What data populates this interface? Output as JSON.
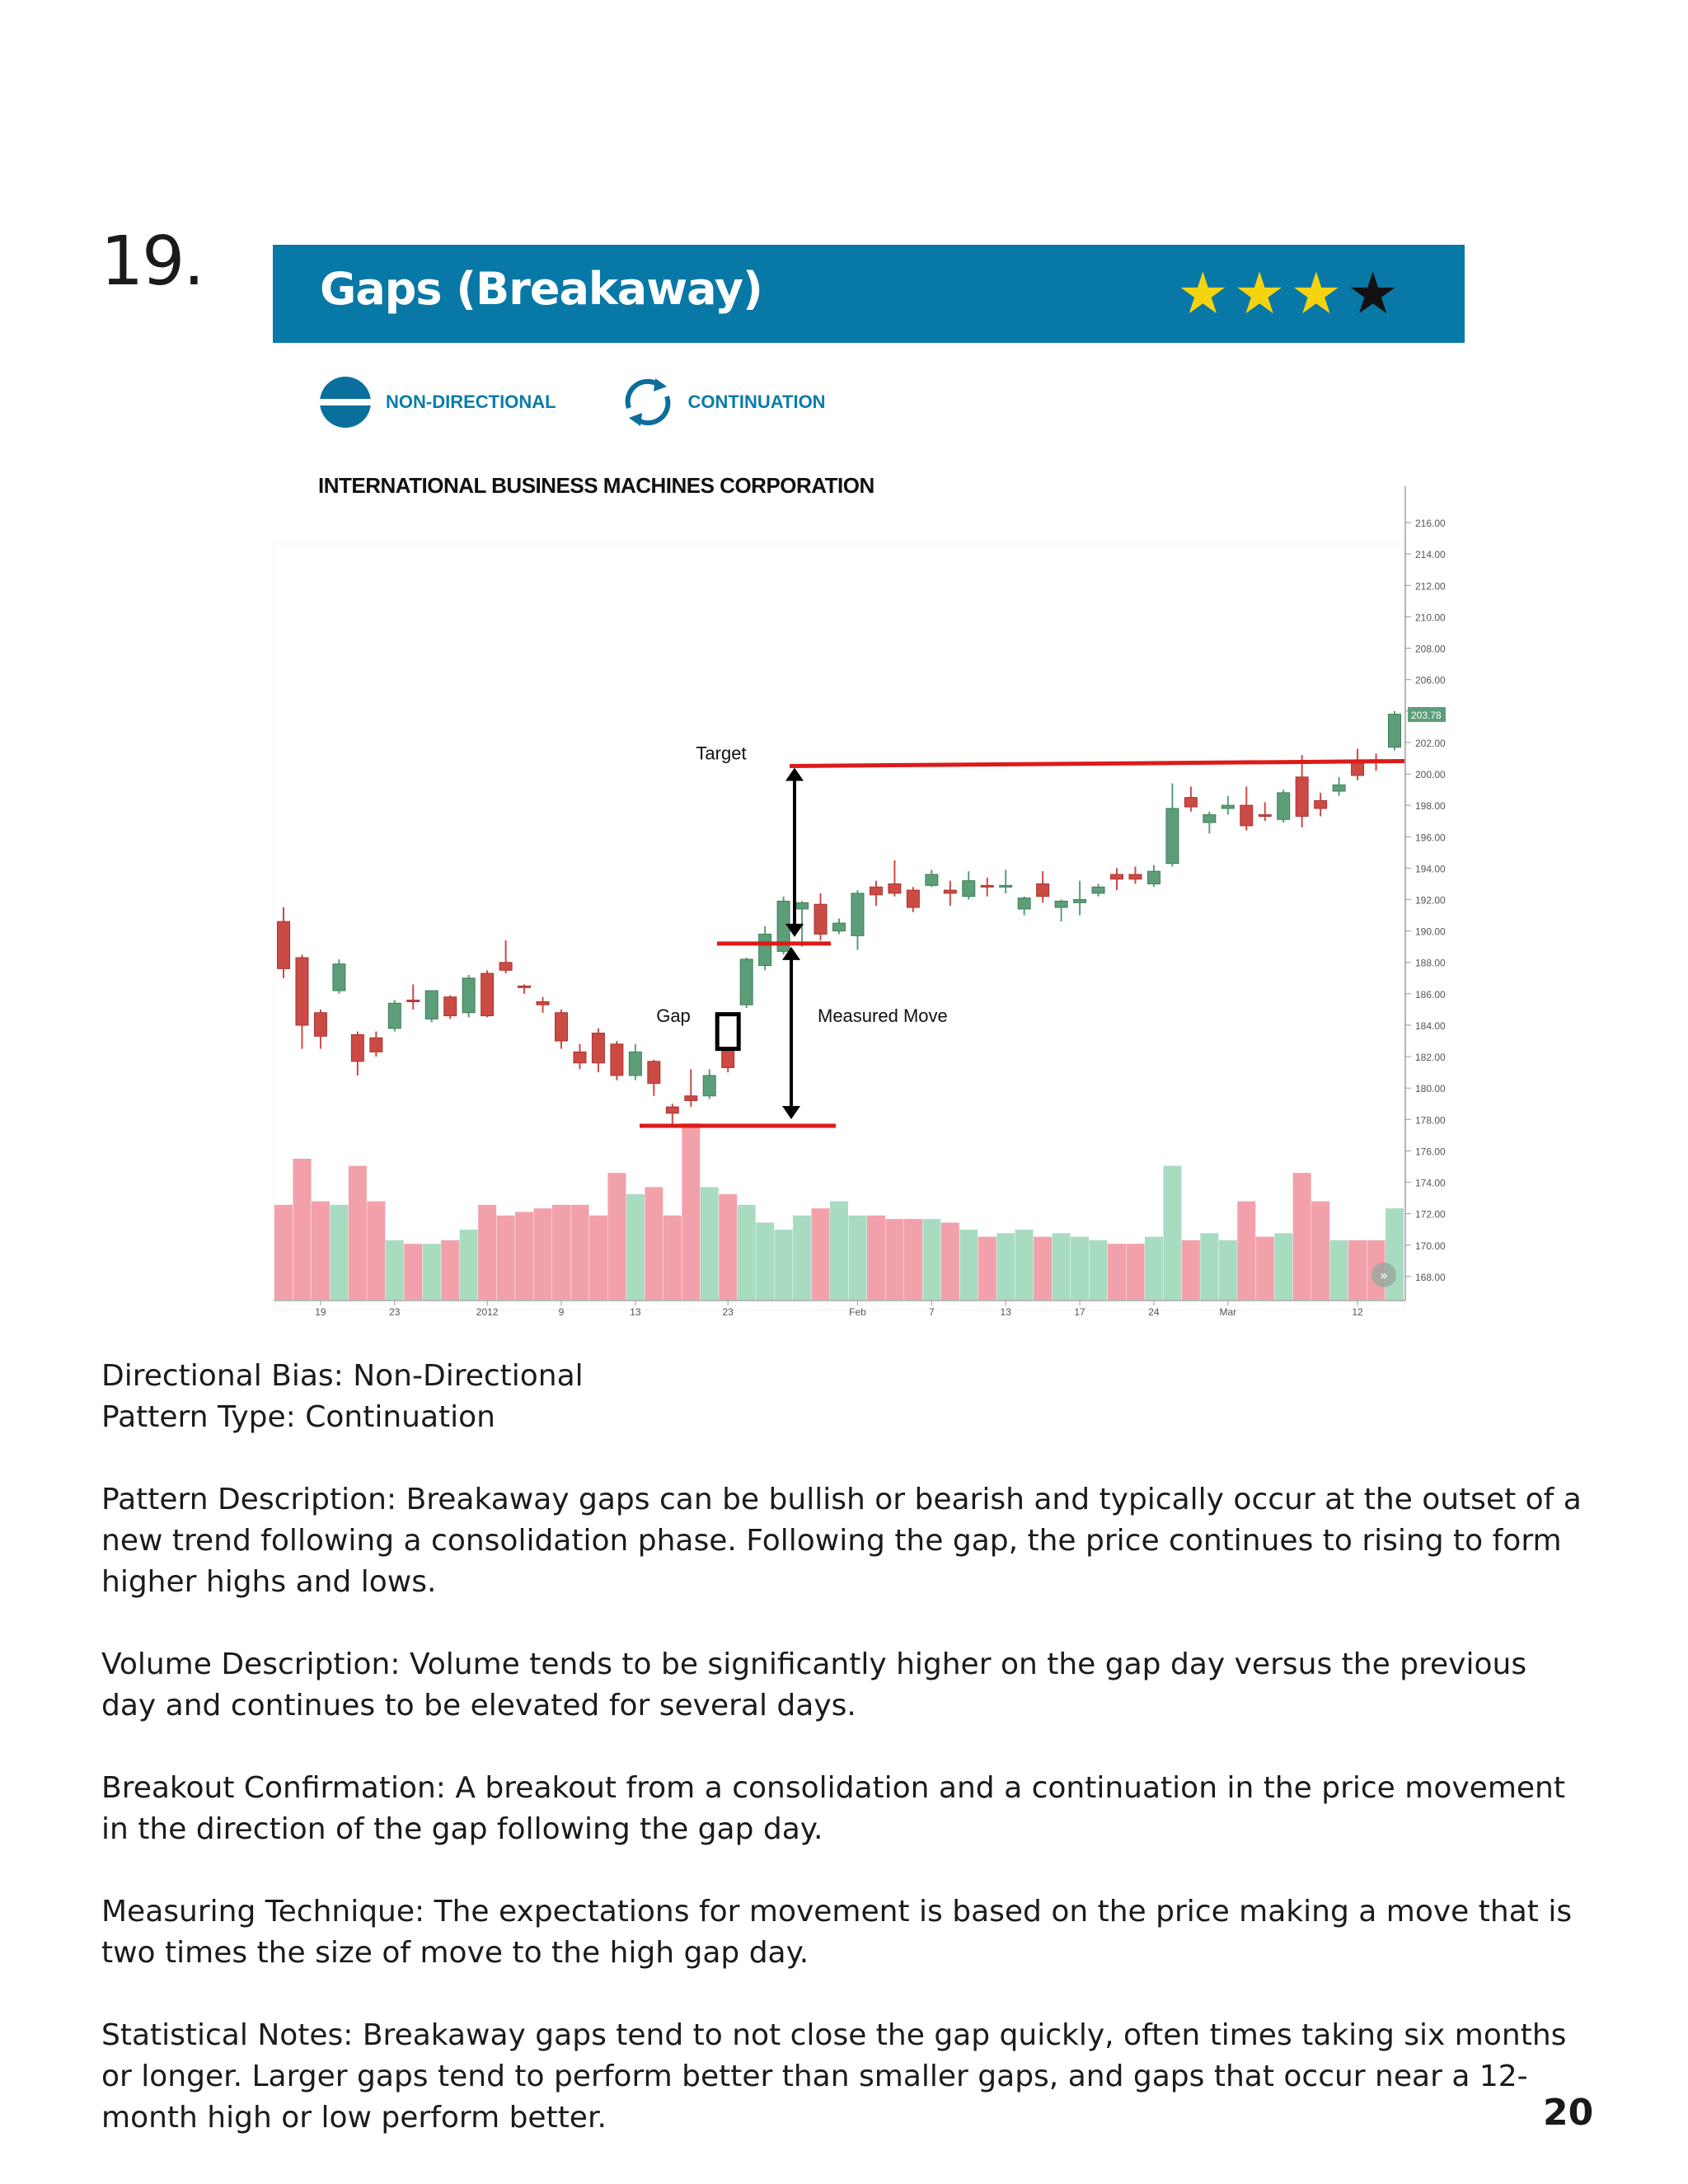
{
  "page": {
    "pattern_number": "19.",
    "page_number": "20"
  },
  "banner": {
    "title": "Gaps (Breakaway)",
    "rating": 3,
    "rating_max": 4,
    "background_color": "#0878a6"
  },
  "tags": [
    {
      "icon": "non-directional-icon",
      "label": "NON-DIRECTIONAL"
    },
    {
      "icon": "continuation-icon",
      "label": "CONTINUATION"
    }
  ],
  "chart_title": "INTERNATIONAL BUSINESS MACHINES CORPORATION",
  "chart_data": {
    "type": "candlestick",
    "title": "INTERNATIONAL BUSINESS MACHINES CORPORATION",
    "ylim": [
      167,
      217
    ],
    "y_ticks": [
      "216.00",
      "214.00",
      "212.00",
      "210.00",
      "208.00",
      "206.00",
      "204.00",
      "202.00",
      "200.00",
      "198.00",
      "196.00",
      "194.00",
      "192.00",
      "190.00",
      "188.00",
      "186.00",
      "184.00",
      "182.00",
      "180.00",
      "178.00",
      "176.00",
      "174.00",
      "172.00",
      "170.00",
      "168.00"
    ],
    "last_price_label": "203.78",
    "x_tick_labels": [
      {
        "index": 2,
        "label": "19"
      },
      {
        "index": 6,
        "label": "23"
      },
      {
        "index": 11,
        "label": "2012"
      },
      {
        "index": 15,
        "label": "9"
      },
      {
        "index": 19,
        "label": "13"
      },
      {
        "index": 24,
        "label": "23"
      },
      {
        "index": 31,
        "label": "Feb"
      },
      {
        "index": 35,
        "label": "7"
      },
      {
        "index": 39,
        "label": "13"
      },
      {
        "index": 43,
        "label": "17"
      },
      {
        "index": 47,
        "label": "24"
      },
      {
        "index": 51,
        "label": "Mar"
      },
      {
        "index": 58,
        "label": "12"
      }
    ],
    "candles": [
      {
        "o": 190.6,
        "h": 191.5,
        "c": 187.6,
        "l": 187.0
      },
      {
        "o": 188.3,
        "h": 188.5,
        "c": 184.0,
        "l": 182.5
      },
      {
        "o": 184.8,
        "h": 185.0,
        "c": 183.3,
        "l": 182.5
      },
      {
        "o": 186.2,
        "h": 188.2,
        "c": 187.9,
        "l": 186.0
      },
      {
        "o": 183.4,
        "h": 183.6,
        "c": 181.7,
        "l": 180.8
      },
      {
        "o": 183.2,
        "h": 183.6,
        "c": 182.3,
        "l": 182.0
      },
      {
        "o": 183.8,
        "h": 185.6,
        "c": 185.4,
        "l": 183.6
      },
      {
        "o": 185.6,
        "h": 186.6,
        "c": 185.5,
        "l": 185.0
      },
      {
        "o": 184.4,
        "h": 186.2,
        "c": 186.2,
        "l": 184.2
      },
      {
        "o": 185.8,
        "h": 185.9,
        "c": 184.6,
        "l": 184.4
      },
      {
        "o": 184.8,
        "h": 187.2,
        "c": 187.0,
        "l": 184.5
      },
      {
        "o": 187.3,
        "h": 187.5,
        "c": 184.6,
        "l": 184.5
      },
      {
        "o": 188.0,
        "h": 189.4,
        "c": 187.5,
        "l": 187.3
      },
      {
        "o": 186.5,
        "h": 186.6,
        "c": 186.4,
        "l": 186.0
      },
      {
        "o": 185.5,
        "h": 185.8,
        "c": 185.3,
        "l": 184.8
      },
      {
        "o": 184.8,
        "h": 185.0,
        "c": 183.0,
        "l": 182.5
      },
      {
        "o": 182.3,
        "h": 182.8,
        "c": 181.6,
        "l": 181.2
      },
      {
        "o": 183.5,
        "h": 183.8,
        "c": 181.6,
        "l": 181.0
      },
      {
        "o": 182.8,
        "h": 183.0,
        "c": 180.8,
        "l": 180.5
      },
      {
        "o": 180.8,
        "h": 182.8,
        "c": 182.3,
        "l": 180.5
      },
      {
        "o": 181.7,
        "h": 181.8,
        "c": 180.3,
        "l": 179.5
      },
      {
        "o": 178.8,
        "h": 179.0,
        "c": 178.4,
        "l": 177.5
      },
      {
        "o": 179.5,
        "h": 181.2,
        "c": 179.2,
        "l": 178.8
      },
      {
        "o": 179.5,
        "h": 181.2,
        "c": 180.8,
        "l": 179.3
      },
      {
        "o": 182.5,
        "h": 182.6,
        "c": 181.3,
        "l": 181.0
      },
      {
        "o": 185.3,
        "h": 188.3,
        "c": 188.2,
        "l": 185.1
      },
      {
        "o": 187.8,
        "h": 190.3,
        "c": 189.8,
        "l": 187.5
      },
      {
        "o": 188.7,
        "h": 192.2,
        "c": 191.9,
        "l": 188.5
      },
      {
        "o": 191.4,
        "h": 191.9,
        "c": 191.8,
        "l": 189.0
      },
      {
        "o": 191.7,
        "h": 192.4,
        "c": 189.8,
        "l": 189.4
      },
      {
        "o": 190.0,
        "h": 190.8,
        "c": 190.5,
        "l": 189.8
      },
      {
        "o": 189.7,
        "h": 192.6,
        "c": 192.4,
        "l": 188.8
      },
      {
        "o": 192.8,
        "h": 193.2,
        "c": 192.3,
        "l": 191.6
      },
      {
        "o": 193.0,
        "h": 194.5,
        "c": 192.4,
        "l": 192.2
      },
      {
        "o": 192.6,
        "h": 192.8,
        "c": 191.5,
        "l": 191.2
      },
      {
        "o": 192.9,
        "h": 193.9,
        "c": 193.6,
        "l": 192.8
      },
      {
        "o": 192.6,
        "h": 193.2,
        "c": 192.4,
        "l": 191.6
      },
      {
        "o": 192.2,
        "h": 193.8,
        "c": 193.2,
        "l": 192.0
      },
      {
        "o": 192.9,
        "h": 193.4,
        "c": 192.8,
        "l": 192.2
      },
      {
        "o": 192.9,
        "h": 193.9,
        "c": 192.9,
        "l": 192.4
      },
      {
        "o": 191.4,
        "h": 192.2,
        "c": 192.1,
        "l": 191.0
      },
      {
        "o": 193.0,
        "h": 193.8,
        "c": 192.2,
        "l": 191.8
      },
      {
        "o": 191.5,
        "h": 192.0,
        "c": 191.9,
        "l": 190.6
      },
      {
        "o": 191.8,
        "h": 193.2,
        "c": 192.0,
        "l": 191.0
      },
      {
        "o": 192.4,
        "h": 193.0,
        "c": 192.8,
        "l": 192.2
      },
      {
        "o": 193.6,
        "h": 194.0,
        "c": 193.3,
        "l": 192.6
      },
      {
        "o": 193.6,
        "h": 194.1,
        "c": 193.3,
        "l": 193.0
      },
      {
        "o": 193.0,
        "h": 194.2,
        "c": 193.8,
        "l": 192.8
      },
      {
        "o": 194.3,
        "h": 199.4,
        "c": 197.8,
        "l": 194.1
      },
      {
        "o": 198.5,
        "h": 199.2,
        "c": 197.9,
        "l": 197.6
      },
      {
        "o": 196.9,
        "h": 197.6,
        "c": 197.4,
        "l": 196.2
      },
      {
        "o": 197.8,
        "h": 198.6,
        "c": 198.0,
        "l": 197.4
      },
      {
        "o": 198.0,
        "h": 199.2,
        "c": 196.7,
        "l": 196.4
      },
      {
        "o": 197.4,
        "h": 198.2,
        "c": 197.3,
        "l": 197.0
      },
      {
        "o": 197.1,
        "h": 199.0,
        "c": 198.8,
        "l": 196.9
      },
      {
        "o": 199.8,
        "h": 201.2,
        "c": 197.3,
        "l": 196.6
      },
      {
        "o": 198.3,
        "h": 198.8,
        "c": 197.8,
        "l": 197.3
      },
      {
        "o": 198.9,
        "h": 199.8,
        "c": 199.3,
        "l": 198.6
      },
      {
        "o": 200.8,
        "h": 201.6,
        "c": 199.9,
        "l": 199.6
      },
      {
        "o": 200.9,
        "h": 201.3,
        "c": 200.8,
        "l": 200.2
      },
      {
        "o": 201.7,
        "h": 204.0,
        "c": 203.8,
        "l": 201.5
      }
    ],
    "volume": [
      27,
      40,
      28,
      27,
      38,
      28,
      17,
      16,
      16,
      17,
      20,
      27,
      24,
      25,
      26,
      27,
      27,
      24,
      36,
      30,
      32,
      24,
      50,
      32,
      30,
      27,
      22,
      20,
      24,
      26,
      28,
      24,
      24,
      23,
      23,
      23,
      22,
      20,
      18,
      19,
      20,
      18,
      19,
      18,
      17,
      16,
      16,
      18,
      38,
      17,
      19,
      17,
      28,
      18,
      19,
      36,
      28,
      17,
      17,
      17,
      26
    ],
    "annotations": {
      "target_label": "Target",
      "gap_label": "Gap",
      "measured_move_label": "Measured Move",
      "target_level": 200.5,
      "mid_level": 189.2,
      "base_level": 177.6
    },
    "colors": {
      "up": "#5b9e78",
      "down": "#cc4a44",
      "volume_up": "#a7dcc1",
      "volume_down": "#f2a1ab",
      "annotation_line": "#dd1a1a"
    }
  },
  "text_blocks": {
    "directional_bias": "Directional Bias: Non-Directional",
    "pattern_type": "Pattern Type: Continuation",
    "pattern_description": "Pattern Description: Breakaway gaps can be bullish or bearish and typically occur at the outset of a new trend following a consolidation phase. Following the gap, the price continues to rising to form higher highs and lows.",
    "volume_description": "Volume Description: Volume tends to be significantly higher on the gap day versus the previous day and continues to be elevated for several days.",
    "breakout_confirmation": "Breakout Confirmation: A breakout from a consolidation and a continuation in the price movement in the direction of the gap following the gap day.",
    "measuring_technique": "Measuring Technique: The expectations for movement is based on the price making a move that is two times the size of move to the high gap day.",
    "statistical_notes": "Statistical Notes: Breakaway gaps tend to not close the gap quickly, often times taking six months or longer. Larger gaps tend to perform better than smaller gaps, and gaps that occur near a 12-month high or low perform better."
  }
}
